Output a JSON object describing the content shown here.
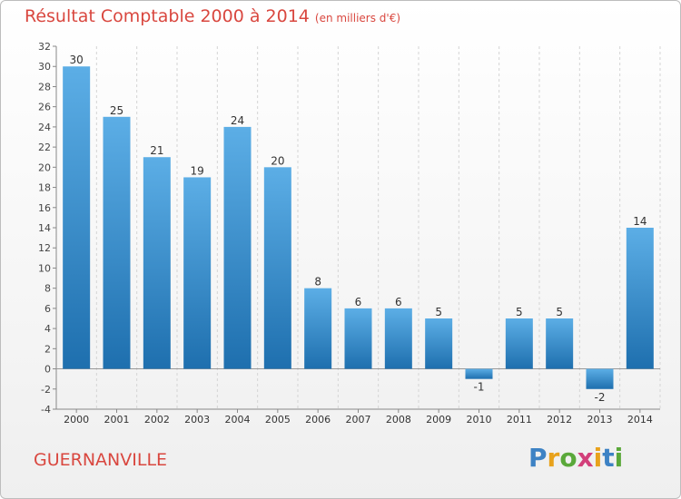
{
  "header": {
    "title": "Résultat Comptable 2000 à 2014",
    "unit": "(en milliers d'€)"
  },
  "footer": {
    "town": "GUERNANVILLE",
    "logo_letters": [
      "P",
      "r",
      "o",
      "x",
      "i",
      "t",
      "i"
    ],
    "logo_colors": [
      "#3d82c4",
      "#e8a21c",
      "#5aa83a",
      "#d23f7a",
      "#e8a21c",
      "#3d82c4",
      "#5aa83a"
    ]
  },
  "colors": {
    "title": "#d9473f",
    "bar_top": "#5caee6",
    "bar_bottom": "#1e6fae",
    "grid": "#d4d4d4"
  },
  "chart_data": {
    "type": "bar",
    "categories": [
      "2000",
      "2001",
      "2002",
      "2003",
      "2004",
      "2005",
      "2006",
      "2007",
      "2008",
      "2009",
      "2010",
      "2011",
      "2012",
      "2013",
      "2014"
    ],
    "values": [
      30,
      25,
      21,
      19,
      24,
      20,
      8,
      6,
      6,
      5,
      -1,
      5,
      5,
      -2,
      14
    ],
    "ylim": [
      -4,
      32
    ],
    "yticks": [
      -4,
      -2,
      0,
      2,
      4,
      6,
      8,
      10,
      12,
      14,
      16,
      18,
      20,
      22,
      24,
      26,
      28,
      30,
      32
    ],
    "grid": "dashed vertical"
  }
}
